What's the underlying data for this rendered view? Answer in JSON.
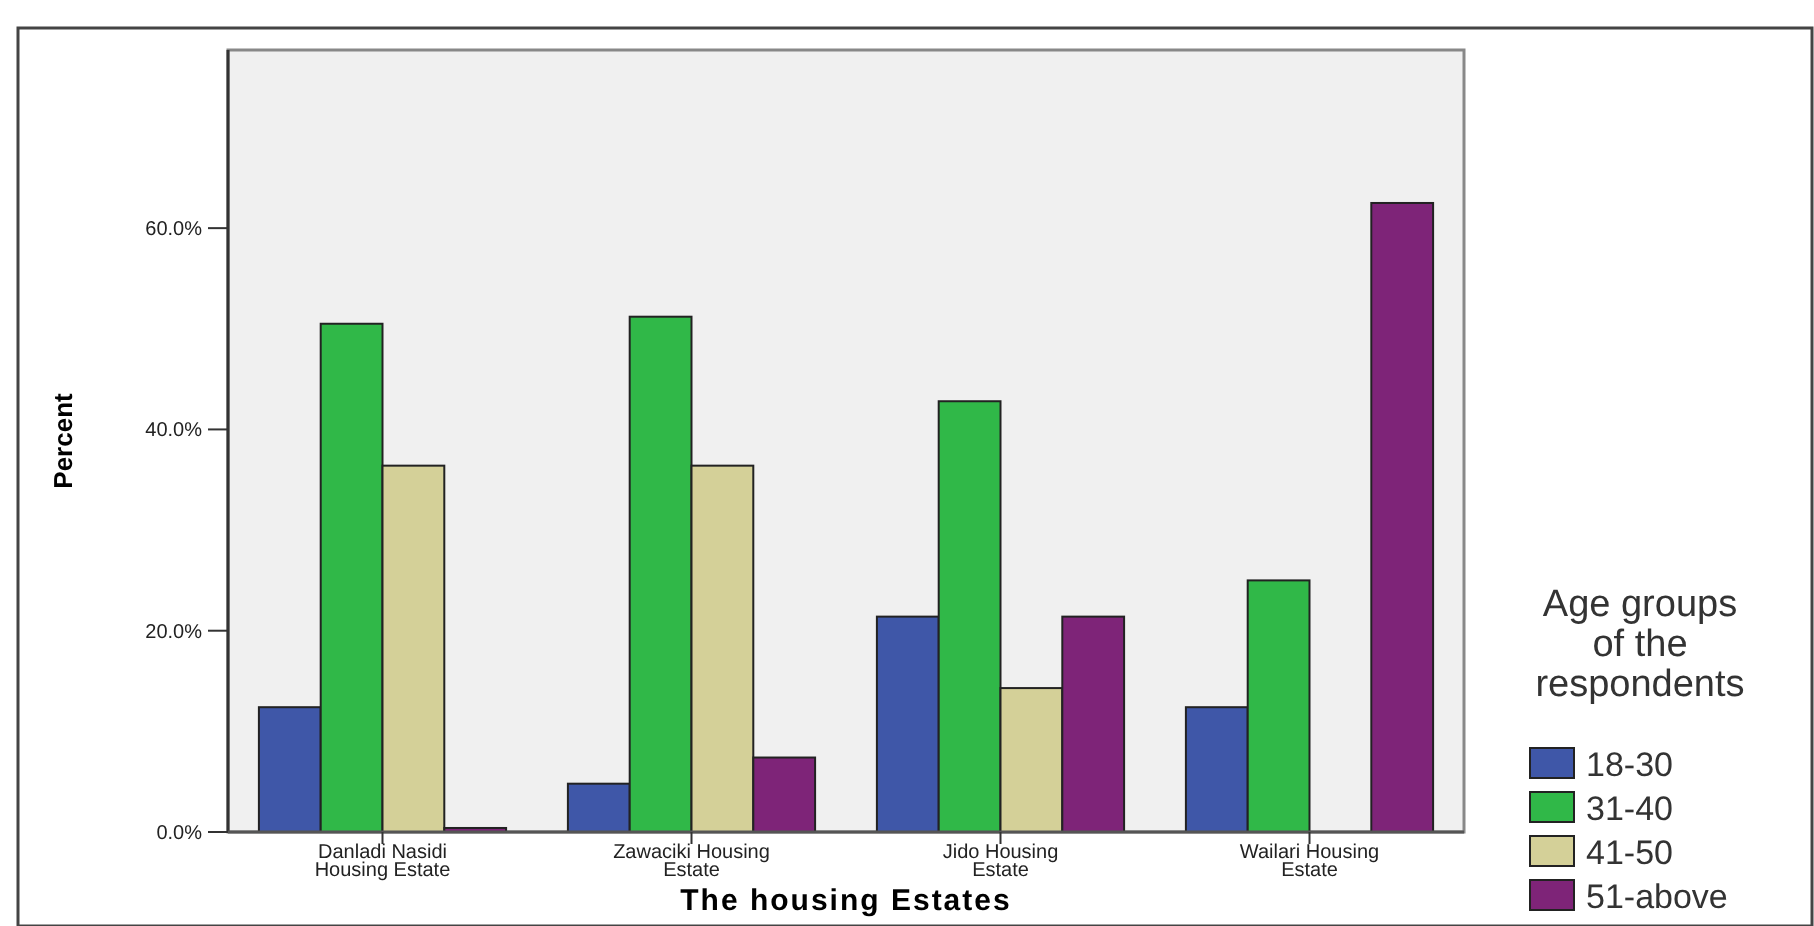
{
  "chart_data": {
    "type": "bar",
    "xlabel": "The housing Estates",
    "ylabel": "Percent",
    "legend_title": "Age groups of the respondents",
    "legend": "right",
    "categories": [
      "Danladi Nasidi Housing Estate",
      "Zawaciki Housing Estate",
      "Jido Housing Estate",
      "Wailari Housing Estate"
    ],
    "series": [
      {
        "name": "18-30",
        "color": "#3f57a8",
        "values": [
          12.4,
          4.8,
          21.4,
          12.4
        ]
      },
      {
        "name": "31-40",
        "color": "#30b848",
        "values": [
          50.5,
          51.2,
          42.8,
          25.0
        ]
      },
      {
        "name": "41-50",
        "color": "#d4d098",
        "values": [
          36.4,
          36.4,
          14.3,
          0
        ]
      },
      {
        "name": "51-above",
        "color": "#7e2478",
        "values": [
          0.4,
          7.4,
          21.4,
          62.5
        ]
      }
    ],
    "ylim": [
      0,
      77.7
    ],
    "yticks": [
      {
        "value": 0,
        "label": "0.0%"
      },
      {
        "value": 20,
        "label": "20.0%"
      },
      {
        "value": 40,
        "label": "40.0%"
      },
      {
        "value": 60,
        "label": "60.0%"
      }
    ],
    "grid": false
  }
}
